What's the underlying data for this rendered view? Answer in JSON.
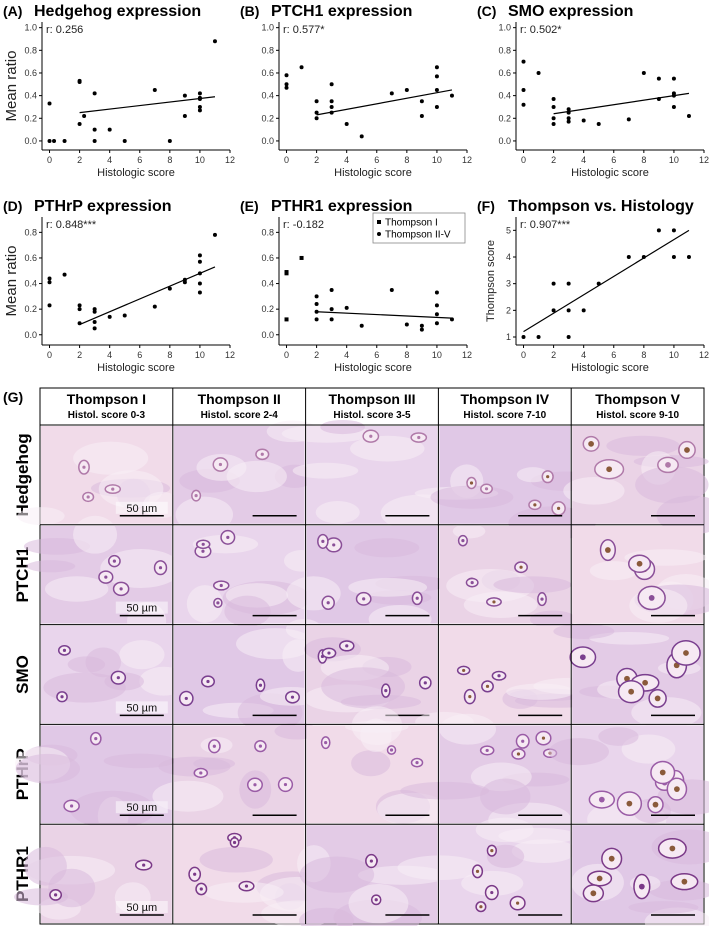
{
  "chart_data": [
    {
      "type": "scatter",
      "panel": "(A)",
      "title": "Hedgehog expression",
      "annotation": "r: 0.256",
      "xlabel": "Histologic score",
      "ylabel": "Mean ratio",
      "xlim": [
        -0.5,
        12
      ],
      "xticks": [
        0,
        2,
        4,
        6,
        8,
        10,
        12
      ],
      "ylim": [
        -0.08,
        1.05
      ],
      "yticks": [
        {
          "value": 0,
          "label": "0.0"
        },
        0.2,
        0.4,
        0.6,
        0.8,
        {
          "value": 1,
          "label": "1.0"
        }
      ],
      "series": [
        {
          "color": "#000000",
          "marker": "circle",
          "x": [
            0,
            0,
            0.3,
            1,
            2,
            2,
            2,
            2.3,
            3,
            3,
            3,
            4,
            5,
            7,
            8,
            9,
            9,
            10,
            10,
            10,
            10,
            10,
            11
          ],
          "y": [
            0.33,
            0,
            0,
            0,
            0.53,
            0.52,
            0.15,
            0.22,
            0.42,
            0.1,
            0,
            0.1,
            0,
            0.45,
            0,
            0.4,
            0.22,
            0.42,
            0.38,
            0.37,
            0.3,
            0.27,
            0.88
          ]
        }
      ],
      "fit": {
        "x": [
          2,
          11
        ],
        "y": [
          0.25,
          0.39
        ]
      }
    },
    {
      "type": "scatter",
      "panel": "(B)",
      "title": "PTCH1 expression",
      "annotation": "r: 0.577*",
      "xlabel": "Histologic score",
      "xlim": [
        -0.5,
        12
      ],
      "xticks": [
        0,
        2,
        4,
        6,
        8,
        10,
        12
      ],
      "ylim": [
        -0.08,
        1.05
      ],
      "yticks": [
        {
          "value": 0,
          "label": "0.0"
        },
        0.2,
        0.4,
        0.6,
        0.8,
        {
          "value": 1,
          "label": "1.0"
        }
      ],
      "series": [
        {
          "color": "#000000",
          "marker": "circle",
          "x": [
            0,
            0,
            0,
            1,
            2,
            2,
            2,
            3,
            3,
            3,
            3,
            4,
            5,
            7,
            8,
            9,
            9,
            10,
            10,
            10,
            10,
            11
          ],
          "y": [
            0.58,
            0.5,
            0.47,
            0.65,
            0.35,
            0.25,
            0.2,
            0.5,
            0.35,
            0.3,
            0.25,
            0.15,
            0.04,
            0.42,
            0.45,
            0.35,
            0.22,
            0.65,
            0.57,
            0.45,
            0.3,
            0.4
          ]
        }
      ],
      "fit": {
        "x": [
          2,
          11
        ],
        "y": [
          0.23,
          0.45
        ]
      }
    },
    {
      "type": "scatter",
      "panel": "(C)",
      "title": "SMO expression",
      "annotation": "r: 0.502*",
      "xlabel": "Histologic score",
      "xlim": [
        -0.5,
        12
      ],
      "xticks": [
        0,
        2,
        4,
        6,
        8,
        10,
        12
      ],
      "ylim": [
        -0.08,
        1.05
      ],
      "yticks": [
        {
          "value": 0,
          "label": "0.0"
        },
        0.2,
        0.4,
        0.6,
        0.8,
        {
          "value": 1,
          "label": "1.0"
        }
      ],
      "series": [
        {
          "color": "#000000",
          "marker": "circle",
          "x": [
            0,
            0,
            0,
            1,
            2,
            2,
            2,
            2,
            3,
            3,
            3,
            3,
            4,
            5,
            7,
            8,
            9,
            9,
            10,
            10,
            10,
            10,
            11
          ],
          "y": [
            0.7,
            0.45,
            0.32,
            0.6,
            0.37,
            0.3,
            0.2,
            0.15,
            0.28,
            0.25,
            0.2,
            0.17,
            0.18,
            0.15,
            0.19,
            0.6,
            0.55,
            0.37,
            0.55,
            0.42,
            0.4,
            0.3,
            0.22
          ]
        }
      ],
      "fit": {
        "x": [
          2,
          11
        ],
        "y": [
          0.24,
          0.42
        ]
      }
    },
    {
      "type": "scatter",
      "panel": "(D)",
      "title": "PTHrP expression",
      "annotation": "r: 0.848***",
      "xlabel": "Histologic score",
      "ylabel": "Mean ratio",
      "xlim": [
        -0.5,
        12
      ],
      "xticks": [
        0,
        2,
        4,
        6,
        8,
        10,
        12
      ],
      "ylim": [
        -0.08,
        0.92
      ],
      "yticks": [
        {
          "value": 0,
          "label": "0.0"
        },
        0.2,
        0.4,
        0.6,
        0.8
      ],
      "series": [
        {
          "color": "#000000",
          "marker": "circle",
          "x": [
            0,
            0,
            0,
            1,
            2,
            2,
            2,
            3,
            3,
            3,
            3,
            4,
            5,
            7,
            8,
            9,
            9,
            10,
            10,
            10,
            10,
            10,
            11
          ],
          "y": [
            0.44,
            0.41,
            0.23,
            0.47,
            0.23,
            0.2,
            0.09,
            0.2,
            0.18,
            0.1,
            0.05,
            0.14,
            0.15,
            0.22,
            0.36,
            0.43,
            0.41,
            0.62,
            0.57,
            0.48,
            0.4,
            0.33,
            0.78
          ]
        }
      ],
      "fit": {
        "x": [
          2,
          11
        ],
        "y": [
          0.08,
          0.53
        ]
      }
    },
    {
      "type": "scatter",
      "panel": "(E)",
      "title": "PTHR1 expression",
      "annotation": "r: -0.182",
      "xlabel": "Histologic score",
      "xlim": [
        -0.5,
        12
      ],
      "xticks": [
        0,
        2,
        4,
        6,
        8,
        10,
        12
      ],
      "ylim": [
        -0.08,
        0.92
      ],
      "yticks": [
        {
          "value": 0,
          "label": "0.0"
        },
        0.2,
        0.4,
        0.6,
        0.8
      ],
      "legend": "upper right",
      "series": [
        {
          "name": "Thompson I",
          "color": "#000000",
          "marker": "square",
          "x": [
            0,
            0,
            0,
            1
          ],
          "y": [
            0.49,
            0.48,
            0.12,
            0.6
          ]
        },
        {
          "name": "Thompson II-V",
          "color": "#000000",
          "marker": "circle",
          "x": [
            2,
            2,
            2,
            2,
            3,
            3,
            3,
            4,
            5,
            7,
            8,
            9,
            9,
            10,
            10,
            10,
            10,
            11
          ],
          "y": [
            0.3,
            0.24,
            0.18,
            0.12,
            0.35,
            0.2,
            0.12,
            0.21,
            0.07,
            0.35,
            0.08,
            0.07,
            0.04,
            0.33,
            0.23,
            0.16,
            0.09,
            0.12
          ]
        }
      ],
      "fit": {
        "x": [
          2,
          11
        ],
        "y": [
          0.18,
          0.13
        ]
      }
    },
    {
      "type": "scatter",
      "panel": "(F)",
      "title": "Thompson vs. Histology",
      "annotation": "r: 0.907***",
      "xlabel": "Histologic score",
      "ylabel": "Thompson score",
      "xlim": [
        -0.5,
        12
      ],
      "xticks": [
        0,
        2,
        4,
        6,
        8,
        10,
        12
      ],
      "ylim": [
        0.7,
        5.5
      ],
      "yticks": [
        1,
        2,
        3,
        4,
        5
      ],
      "series": [
        {
          "color": "#000000",
          "marker": "circle",
          "x": [
            0,
            1,
            2,
            2,
            3,
            3,
            3,
            4,
            5,
            7,
            8,
            9,
            10,
            10,
            11
          ],
          "y": [
            1,
            1,
            2,
            3,
            3,
            2,
            1,
            2,
            3,
            4,
            4,
            5,
            5,
            4,
            4
          ]
        }
      ],
      "fit": {
        "x": [
          0,
          11
        ],
        "y": [
          1.2,
          5
        ]
      }
    }
  ],
  "histology": {
    "panel": "(G)",
    "columns": [
      {
        "name": "Thompson I",
        "score": "Histol. score 0-3"
      },
      {
        "name": "Thompson II",
        "score": "Histol. score 2-4"
      },
      {
        "name": "Thompson III",
        "score": "Histol. score 3-5"
      },
      {
        "name": "Thompson IV",
        "score": "Histol. score 7-10"
      },
      {
        "name": "Thompson V",
        "score": "Histol. score 9-10"
      }
    ],
    "rows": [
      "Hedgehog",
      "PTCH1",
      "SMO",
      "PTHrP",
      "PTHR1"
    ],
    "scale_bar": "50 µm"
  }
}
